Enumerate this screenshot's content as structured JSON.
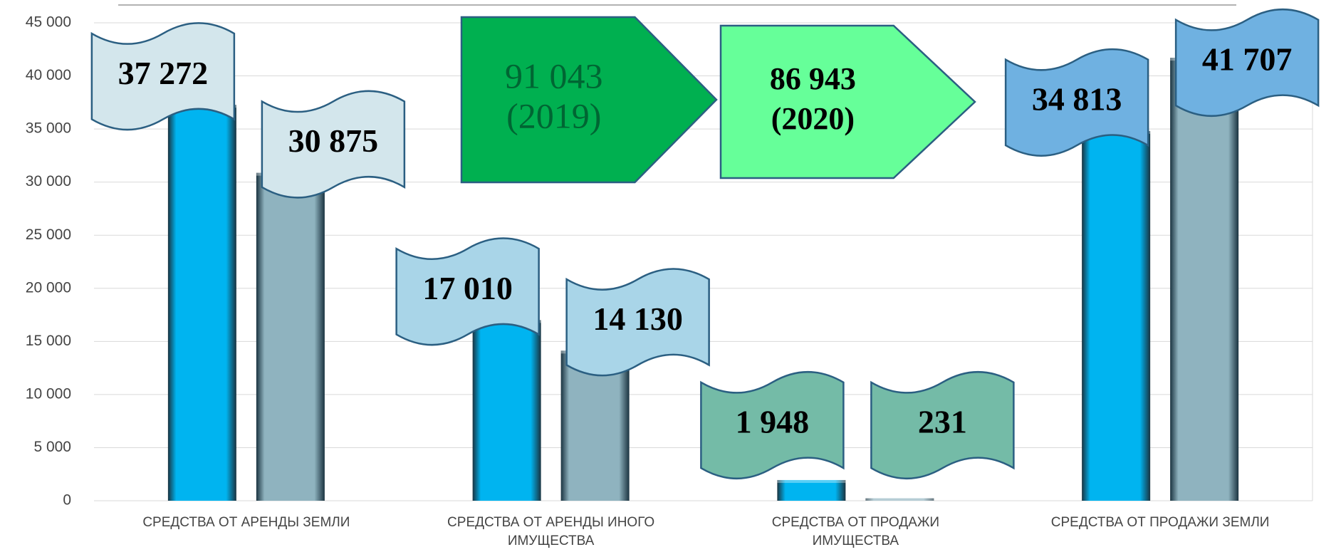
{
  "chart_data": {
    "type": "bar",
    "categories": [
      "СРЕДСТВА ОТ АРЕНДЫ ЗЕМЛИ",
      "СРЕДСТВА ОТ АРЕНДЫ ИНОГО ИМУЩЕСТВА",
      "СРЕДСТВА ОТ ПРОДАЖИ ИМУЩЕСТВА",
      "СРЕДСТВА ОТ ПРОДАЖИ ЗЕМЛИ"
    ],
    "series": [
      {
        "color": "#00b4f0",
        "values": [
          37272,
          17010,
          1948,
          34813
        ],
        "value_labels": [
          "37 272",
          "17 010",
          "1 948",
          "34 813"
        ]
      },
      {
        "color": "#8fb3bf",
        "values": [
          30875,
          14130,
          231,
          41707
        ],
        "value_labels": [
          "30 875",
          "14 130",
          "231",
          "41 707"
        ]
      }
    ],
    "ylim": [
      0,
      45000
    ],
    "yticks": [
      0,
      {
        "value": 5000,
        "label": "5 000"
      },
      {
        "value": 10000,
        "label": "10 000"
      },
      {
        "value": 15000,
        "label": "15 000"
      },
      {
        "value": 20000,
        "label": "20 000"
      },
      {
        "value": 25000,
        "label": "25 000"
      },
      {
        "value": 30000,
        "label": "30 000"
      },
      {
        "value": 35000,
        "label": "35 000"
      },
      {
        "value": 40000,
        "label": "40 000"
      },
      {
        "value": 45000,
        "label": "45 000"
      }
    ],
    "grid": true,
    "annotations": [
      {
        "lines": [
          "91 043",
          "(2019)"
        ],
        "color": "#00b050"
      },
      {
        "lines": [
          "86 943",
          "(2020)"
        ],
        "color": "#66ff99"
      }
    ]
  }
}
